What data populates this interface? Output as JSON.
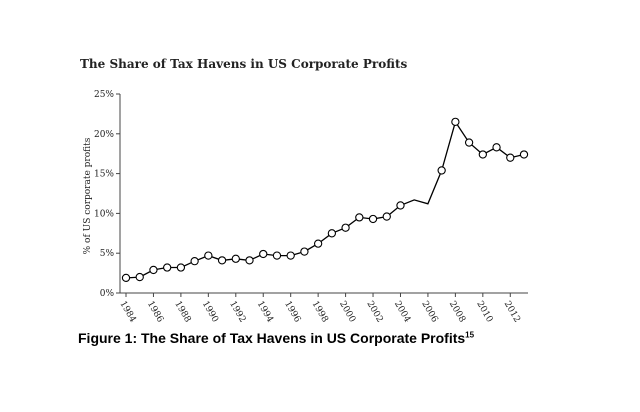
{
  "chart_data": {
    "type": "line",
    "title": "The Share of Tax Havens in US Corporate Profits",
    "ylabel": "% of US corporate profits",
    "xlabel": "",
    "ylim": [
      0,
      25
    ],
    "yticks": [
      "0%",
      "5%",
      "10%",
      "15%",
      "20%",
      "25%"
    ],
    "xlim": [
      1984,
      2013
    ],
    "xticks": [
      "1984",
      "1986",
      "1988",
      "1990",
      "1992",
      "1994",
      "1996",
      "1998",
      "2000",
      "2002",
      "2004",
      "2006",
      "2008",
      "2010",
      "2012"
    ],
    "grid": false,
    "series": [
      {
        "x": [
          1984,
          1985,
          1986,
          1987,
          1988,
          1989,
          1990,
          1991,
          1992,
          1993,
          1994,
          1995,
          1996,
          1997,
          1998,
          1999,
          2000,
          2001,
          2002,
          2003,
          2004,
          2005,
          2006,
          2007,
          2008,
          2009,
          2010,
          2011,
          2012,
          2013
        ],
        "values": [
          1.9,
          2.0,
          2.9,
          3.2,
          3.2,
          4.0,
          4.7,
          4.1,
          4.3,
          4.1,
          4.9,
          4.7,
          4.7,
          5.2,
          6.2,
          7.5,
          8.2,
          9.5,
          9.3,
          9.6,
          11.0,
          11.7,
          11.2,
          15.4,
          21.5,
          18.9,
          17.4,
          18.3,
          17.0,
          17.4
        ],
        "marker": [
          true,
          true,
          true,
          true,
          true,
          true,
          true,
          true,
          true,
          true,
          true,
          true,
          true,
          true,
          true,
          true,
          true,
          true,
          true,
          true,
          true,
          false,
          false,
          true,
          true,
          true,
          true,
          true,
          true,
          true
        ]
      }
    ],
    "color": "#000000"
  },
  "caption": {
    "text": "Figure 1: The Share of Tax Havens in US Corporate Profits",
    "footnote": "15"
  }
}
